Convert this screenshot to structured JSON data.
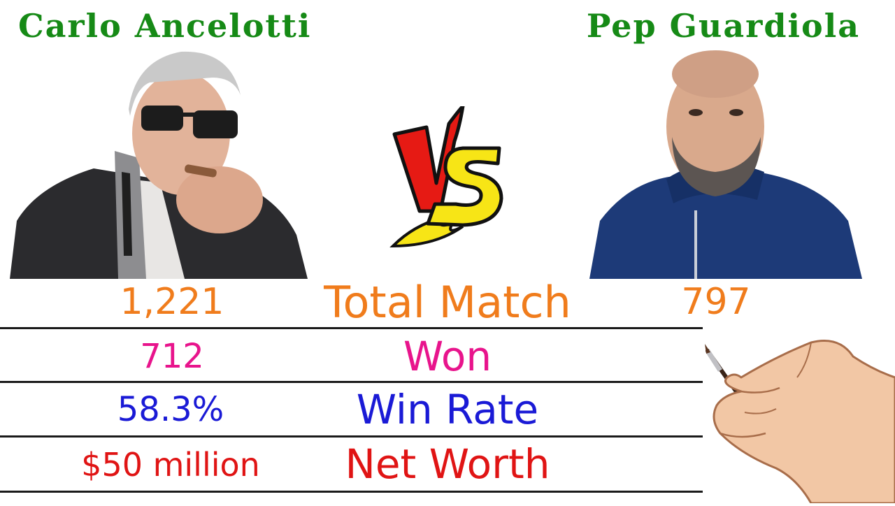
{
  "coach_left": {
    "name": "Carlo Ancelotti"
  },
  "coach_right": {
    "name": "Pep Guardiola"
  },
  "vs_logo": {
    "text": "VS",
    "icon": "vs-icon"
  },
  "rows": [
    {
      "label": "Total Match",
      "left_value": "1,221",
      "right_value": "797",
      "color": "#f07c1c"
    },
    {
      "label": "Won",
      "left_value": "712",
      "right_value": "",
      "color": "#e8148c"
    },
    {
      "label": "Win Rate",
      "left_value": "58.3%",
      "right_value": "",
      "color": "#1a1ad6"
    },
    {
      "label": "Net Worth",
      "left_value": "$50 million",
      "right_value": "",
      "color": "#e01414"
    }
  ],
  "colors": {
    "name_green": "#168a16",
    "rule": "#1a1a1a"
  }
}
